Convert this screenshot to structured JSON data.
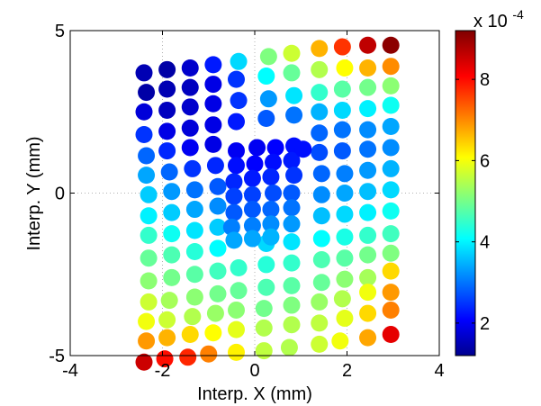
{
  "chart_data": {
    "type": "scatter",
    "title": "",
    "xlabel": "Interp. X (mm)",
    "ylabel": "Interp. Y (mm)",
    "xlim": [
      -4,
      4
    ],
    "ylim": [
      -5,
      5
    ],
    "xticks": [
      -4,
      -2,
      0,
      2,
      4
    ],
    "yticks": [
      -5,
      0,
      5
    ],
    "xtick_labels": [
      "-4",
      "-2",
      "0",
      "2",
      "4"
    ],
    "ytick_labels": [
      "-5",
      "0",
      "5"
    ],
    "grid": "dotted lines at x=0, y=0 and interior ticks",
    "colormap": "jet",
    "colorbar": {
      "min": 0.00012,
      "max": 0.00092,
      "tick_values": [
        2,
        4,
        6,
        8
      ],
      "tick_labels": [
        "2",
        "4",
        "6",
        "8"
      ],
      "exponent_label": "x 10",
      "exponent_power": "-4"
    },
    "points": [
      {
        "x": -2.4,
        "y": 3.7,
        "v": 1.6
      },
      {
        "x": -1.9,
        "y": 3.8,
        "v": 1.5
      },
      {
        "x": -1.4,
        "y": 3.85,
        "v": 1.8
      },
      {
        "x": -0.9,
        "y": 3.95,
        "v": 2.4
      },
      {
        "x": -0.35,
        "y": 4.05,
        "v": 3.9
      },
      {
        "x": 0.3,
        "y": 4.2,
        "v": 5.2
      },
      {
        "x": 0.8,
        "y": 4.3,
        "v": 5.8
      },
      {
        "x": 1.4,
        "y": 4.45,
        "v": 6.8
      },
      {
        "x": 1.9,
        "y": 4.5,
        "v": 7.8
      },
      {
        "x": 2.45,
        "y": 4.55,
        "v": 8.7
      },
      {
        "x": 2.95,
        "y": 4.55,
        "v": 9.1
      },
      {
        "x": -2.35,
        "y": 3.1,
        "v": 1.5
      },
      {
        "x": -1.9,
        "y": 3.2,
        "v": 1.6
      },
      {
        "x": -1.4,
        "y": 3.25,
        "v": 1.7
      },
      {
        "x": -0.9,
        "y": 3.35,
        "v": 2.0
      },
      {
        "x": -0.4,
        "y": 3.5,
        "v": 2.6
      },
      {
        "x": 0.25,
        "y": 3.6,
        "v": 4.2
      },
      {
        "x": 0.8,
        "y": 3.7,
        "v": 5.0
      },
      {
        "x": 1.4,
        "y": 3.8,
        "v": 5.6
      },
      {
        "x": 1.95,
        "y": 3.85,
        "v": 6.2
      },
      {
        "x": 2.45,
        "y": 3.85,
        "v": 6.8
      },
      {
        "x": 2.95,
        "y": 3.9,
        "v": 7.1
      },
      {
        "x": -2.4,
        "y": 2.5,
        "v": 1.9
      },
      {
        "x": -1.9,
        "y": 2.55,
        "v": 1.7
      },
      {
        "x": -1.4,
        "y": 2.65,
        "v": 1.8
      },
      {
        "x": -0.9,
        "y": 2.75,
        "v": 2.0
      },
      {
        "x": -0.35,
        "y": 2.85,
        "v": 2.6
      },
      {
        "x": 0.3,
        "y": 2.9,
        "v": 3.4
      },
      {
        "x": 0.85,
        "y": 3.0,
        "v": 4.0
      },
      {
        "x": 1.4,
        "y": 3.1,
        "v": 4.6
      },
      {
        "x": 1.9,
        "y": 3.2,
        "v": 4.9
      },
      {
        "x": 2.45,
        "y": 3.25,
        "v": 5.1
      },
      {
        "x": 2.95,
        "y": 3.3,
        "v": 5.3
      },
      {
        "x": -2.4,
        "y": 1.8,
        "v": 2.6
      },
      {
        "x": -1.9,
        "y": 1.9,
        "v": 2.0
      },
      {
        "x": -1.4,
        "y": 2.0,
        "v": 1.9
      },
      {
        "x": -0.9,
        "y": 2.1,
        "v": 2.0
      },
      {
        "x": -0.4,
        "y": 2.2,
        "v": 2.4
      },
      {
        "x": 0.25,
        "y": 2.3,
        "v": 2.9
      },
      {
        "x": 0.85,
        "y": 2.4,
        "v": 3.1
      },
      {
        "x": 1.4,
        "y": 2.5,
        "v": 3.6
      },
      {
        "x": 1.9,
        "y": 2.55,
        "v": 3.9
      },
      {
        "x": 2.45,
        "y": 2.6,
        "v": 4.1
      },
      {
        "x": 2.95,
        "y": 2.7,
        "v": 4.3
      },
      {
        "x": -2.35,
        "y": 1.15,
        "v": 3.0
      },
      {
        "x": -1.9,
        "y": 1.3,
        "v": 2.5
      },
      {
        "x": -1.4,
        "y": 1.4,
        "v": 2.1
      },
      {
        "x": -0.9,
        "y": 1.5,
        "v": 2.0
      },
      {
        "x": 1.4,
        "y": 1.85,
        "v": 3.0
      },
      {
        "x": 1.9,
        "y": 1.95,
        "v": 3.1
      },
      {
        "x": 2.45,
        "y": 1.95,
        "v": 3.3
      },
      {
        "x": 2.95,
        "y": 2.05,
        "v": 3.5
      },
      {
        "x": -2.35,
        "y": 0.55,
        "v": 3.5
      },
      {
        "x": -1.85,
        "y": 0.65,
        "v": 3.0
      },
      {
        "x": -1.35,
        "y": 0.75,
        "v": 2.6
      },
      {
        "x": -0.85,
        "y": 0.85,
        "v": 2.5
      },
      {
        "x": 1.4,
        "y": 1.25,
        "v": 2.8
      },
      {
        "x": 1.9,
        "y": 1.3,
        "v": 2.9
      },
      {
        "x": 2.45,
        "y": 1.35,
        "v": 3.1
      },
      {
        "x": 2.95,
        "y": 1.4,
        "v": 3.3
      },
      {
        "x": -2.3,
        "y": -0.05,
        "v": 3.8
      },
      {
        "x": -1.8,
        "y": 0.05,
        "v": 3.4
      },
      {
        "x": -1.3,
        "y": 0.1,
        "v": 3.1
      },
      {
        "x": -0.8,
        "y": 0.2,
        "v": 2.9
      },
      {
        "x": 1.45,
        "y": 0.6,
        "v": 3.0
      },
      {
        "x": 1.95,
        "y": 0.6,
        "v": 3.2
      },
      {
        "x": 2.45,
        "y": 0.7,
        "v": 3.4
      },
      {
        "x": 2.95,
        "y": 0.75,
        "v": 3.6
      },
      {
        "x": -2.3,
        "y": -0.7,
        "v": 4.1
      },
      {
        "x": -1.8,
        "y": -0.6,
        "v": 3.8
      },
      {
        "x": -1.3,
        "y": -0.5,
        "v": 3.5
      },
      {
        "x": -0.8,
        "y": -0.4,
        "v": 3.3
      },
      {
        "x": 1.45,
        "y": -0.05,
        "v": 3.3
      },
      {
        "x": 1.95,
        "y": 0.0,
        "v": 3.5
      },
      {
        "x": 2.45,
        "y": 0.05,
        "v": 3.7
      },
      {
        "x": 2.95,
        "y": 0.1,
        "v": 3.9
      },
      {
        "x": -2.3,
        "y": -1.3,
        "v": 4.6
      },
      {
        "x": -1.8,
        "y": -1.25,
        "v": 4.3
      },
      {
        "x": -1.3,
        "y": -1.15,
        "v": 4.0
      },
      {
        "x": -0.8,
        "y": -1.05,
        "v": 3.8
      },
      {
        "x": 1.45,
        "y": -0.7,
        "v": 3.7
      },
      {
        "x": 1.95,
        "y": -0.65,
        "v": 3.9
      },
      {
        "x": 2.45,
        "y": -0.6,
        "v": 4.1
      },
      {
        "x": 2.95,
        "y": -0.55,
        "v": 4.3
      },
      {
        "x": -2.3,
        "y": -2.0,
        "v": 5.0
      },
      {
        "x": -1.8,
        "y": -1.9,
        "v": 4.8
      },
      {
        "x": -1.3,
        "y": -1.8,
        "v": 4.5
      },
      {
        "x": -0.8,
        "y": -1.7,
        "v": 4.2
      },
      {
        "x": 0.25,
        "y": -1.55,
        "v": 3.9
      },
      {
        "x": 0.8,
        "y": -1.5,
        "v": 4.0
      },
      {
        "x": 1.45,
        "y": -1.4,
        "v": 4.2
      },
      {
        "x": 1.95,
        "y": -1.35,
        "v": 4.4
      },
      {
        "x": 2.45,
        "y": -1.3,
        "v": 4.6
      },
      {
        "x": 2.95,
        "y": -1.25,
        "v": 4.7
      },
      {
        "x": -2.3,
        "y": -2.7,
        "v": 5.3
      },
      {
        "x": -1.8,
        "y": -2.6,
        "v": 5.1
      },
      {
        "x": -1.3,
        "y": -2.5,
        "v": 4.9
      },
      {
        "x": -0.8,
        "y": -2.4,
        "v": 4.7
      },
      {
        "x": -0.35,
        "y": -2.3,
        "v": 4.6
      },
      {
        "x": 0.25,
        "y": -2.2,
        "v": 4.5
      },
      {
        "x": 0.8,
        "y": -2.15,
        "v": 4.6
      },
      {
        "x": 1.45,
        "y": -2.05,
        "v": 4.8
      },
      {
        "x": 1.95,
        "y": -2.0,
        "v": 4.9
      },
      {
        "x": 2.45,
        "y": -1.9,
        "v": 5.1
      },
      {
        "x": 2.95,
        "y": -1.85,
        "v": 5.2
      },
      {
        "x": -2.3,
        "y": -3.35,
        "v": 5.8
      },
      {
        "x": -1.85,
        "y": -3.3,
        "v": 5.5
      },
      {
        "x": -1.3,
        "y": -3.2,
        "v": 5.3
      },
      {
        "x": -0.8,
        "y": -3.1,
        "v": 5.1
      },
      {
        "x": -0.35,
        "y": -3.0,
        "v": 5.0
      },
      {
        "x": 0.25,
        "y": -2.9,
        "v": 4.8
      },
      {
        "x": 0.8,
        "y": -2.85,
        "v": 4.9
      },
      {
        "x": 1.45,
        "y": -2.75,
        "v": 5.0
      },
      {
        "x": 1.95,
        "y": -2.65,
        "v": 5.3
      },
      {
        "x": 2.45,
        "y": -2.6,
        "v": 5.5
      },
      {
        "x": 2.95,
        "y": -2.4,
        "v": 6.5
      },
      {
        "x": -2.35,
        "y": -3.95,
        "v": 6.1
      },
      {
        "x": -1.9,
        "y": -3.9,
        "v": 5.8
      },
      {
        "x": -1.35,
        "y": -3.8,
        "v": 5.6
      },
      {
        "x": -0.85,
        "y": -3.7,
        "v": 5.4
      },
      {
        "x": -0.4,
        "y": -3.6,
        "v": 5.3
      },
      {
        "x": 0.2,
        "y": -3.55,
        "v": 5.1
      },
      {
        "x": 0.8,
        "y": -3.45,
        "v": 5.2
      },
      {
        "x": 1.4,
        "y": -3.35,
        "v": 5.4
      },
      {
        "x": 1.9,
        "y": -3.25,
        "v": 5.6
      },
      {
        "x": 2.45,
        "y": -3.05,
        "v": 6.1
      },
      {
        "x": 2.95,
        "y": -3.05,
        "v": 7.0
      },
      {
        "x": -2.35,
        "y": -4.55,
        "v": 7.0
      },
      {
        "x": -1.9,
        "y": -4.45,
        "v": 6.8
      },
      {
        "x": -1.4,
        "y": -4.35,
        "v": 6.5
      },
      {
        "x": -0.9,
        "y": -4.3,
        "v": 6.2
      },
      {
        "x": -0.4,
        "y": -4.2,
        "v": 6.0
      },
      {
        "x": 0.2,
        "y": -4.15,
        "v": 5.6
      },
      {
        "x": 0.8,
        "y": -4.05,
        "v": 5.6
      },
      {
        "x": 1.4,
        "y": -4.0,
        "v": 5.7
      },
      {
        "x": 1.95,
        "y": -3.85,
        "v": 6.0
      },
      {
        "x": 2.45,
        "y": -3.7,
        "v": 6.5
      },
      {
        "x": 2.95,
        "y": -3.6,
        "v": 7.2
      },
      {
        "x": -2.4,
        "y": -5.2,
        "v": 8.6
      },
      {
        "x": -1.95,
        "y": -5.1,
        "v": 8.1
      },
      {
        "x": -1.45,
        "y": -5.05,
        "v": 7.9
      },
      {
        "x": -1.0,
        "y": -4.95,
        "v": 7.2
      },
      {
        "x": -0.4,
        "y": -4.9,
        "v": 6.3
      },
      {
        "x": 0.2,
        "y": -4.85,
        "v": 5.7
      },
      {
        "x": 0.75,
        "y": -4.75,
        "v": 5.6
      },
      {
        "x": 1.4,
        "y": -4.65,
        "v": 5.8
      },
      {
        "x": 1.85,
        "y": -4.55,
        "v": 6.1
      },
      {
        "x": 2.45,
        "y": -4.45,
        "v": 6.9
      },
      {
        "x": 2.95,
        "y": -4.35,
        "v": 8.4
      },
      {
        "x": -0.4,
        "y": 1.3,
        "v": 2.1
      },
      {
        "x": 0.05,
        "y": 1.4,
        "v": 2.1
      },
      {
        "x": 0.45,
        "y": 1.4,
        "v": 2.2
      },
      {
        "x": 0.85,
        "y": 1.45,
        "v": 2.3
      },
      {
        "x": -0.4,
        "y": 0.85,
        "v": 2.3
      },
      {
        "x": 0.0,
        "y": 0.9,
        "v": 2.2
      },
      {
        "x": 0.4,
        "y": 0.95,
        "v": 2.3
      },
      {
        "x": 0.8,
        "y": 1.0,
        "v": 2.4
      },
      {
        "x": 1.05,
        "y": 1.35,
        "v": 2.3
      },
      {
        "x": -0.45,
        "y": 0.35,
        "v": 2.5
      },
      {
        "x": -0.05,
        "y": 0.45,
        "v": 2.4
      },
      {
        "x": 0.35,
        "y": 0.5,
        "v": 2.5
      },
      {
        "x": 0.85,
        "y": 0.55,
        "v": 2.6
      },
      {
        "x": -0.45,
        "y": -0.1,
        "v": 2.7
      },
      {
        "x": -0.05,
        "y": -0.05,
        "v": 2.7
      },
      {
        "x": 0.4,
        "y": 0.0,
        "v": 2.8
      },
      {
        "x": 0.8,
        "y": 0.0,
        "v": 2.9
      },
      {
        "x": -0.45,
        "y": -0.6,
        "v": 2.9
      },
      {
        "x": -0.05,
        "y": -0.5,
        "v": 2.9
      },
      {
        "x": 0.35,
        "y": -0.5,
        "v": 3.0
      },
      {
        "x": 0.8,
        "y": -0.45,
        "v": 3.1
      },
      {
        "x": -0.5,
        "y": -1.05,
        "v": 3.2
      },
      {
        "x": -0.05,
        "y": -1.0,
        "v": 3.2
      },
      {
        "x": 0.35,
        "y": -0.95,
        "v": 3.3
      },
      {
        "x": 0.8,
        "y": -0.95,
        "v": 3.4
      },
      {
        "x": -0.45,
        "y": -1.45,
        "v": 3.5
      },
      {
        "x": -0.05,
        "y": -1.4,
        "v": 3.5
      },
      {
        "x": 0.35,
        "y": -1.35,
        "v": 3.6
      }
    ]
  }
}
